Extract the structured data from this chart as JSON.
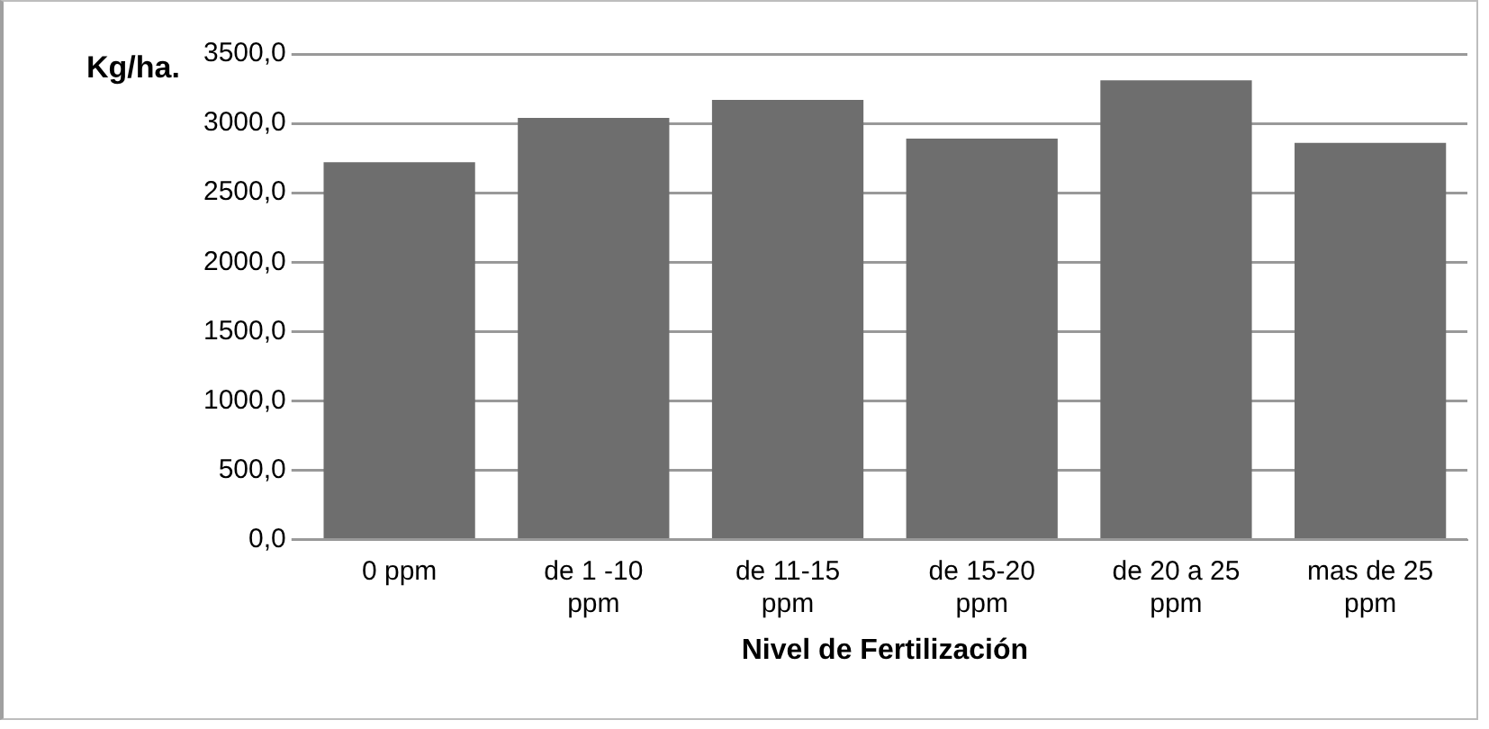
{
  "chart_data": {
    "type": "bar",
    "ylabel": "Kg/ha.",
    "xlabel": "Nivel de Fertilización",
    "categories": [
      "0 ppm",
      "de 1 -10 ppm",
      "de 11-15 ppm",
      "de 15-20 ppm",
      "de 20 a 25 ppm",
      "mas de 25 ppm"
    ],
    "values": [
      2720,
      3040,
      3170,
      2890,
      3310,
      2860
    ],
    "color": "#6e6e6e",
    "ylim": [
      0,
      3500
    ],
    "yticks": [
      {
        "value": 0,
        "label": "0,0"
      },
      {
        "value": 500,
        "label": "500,0"
      },
      {
        "value": 1000,
        "label": "1000,0"
      },
      {
        "value": 1500,
        "label": "1500,0"
      },
      {
        "value": 2000,
        "label": "2000,0"
      },
      {
        "value": 2500,
        "label": "2500,0"
      },
      {
        "value": 3000,
        "label": "3000,0"
      },
      {
        "value": 3500,
        "label": "3500,0"
      }
    ],
    "grid": "y",
    "legend": false
  }
}
